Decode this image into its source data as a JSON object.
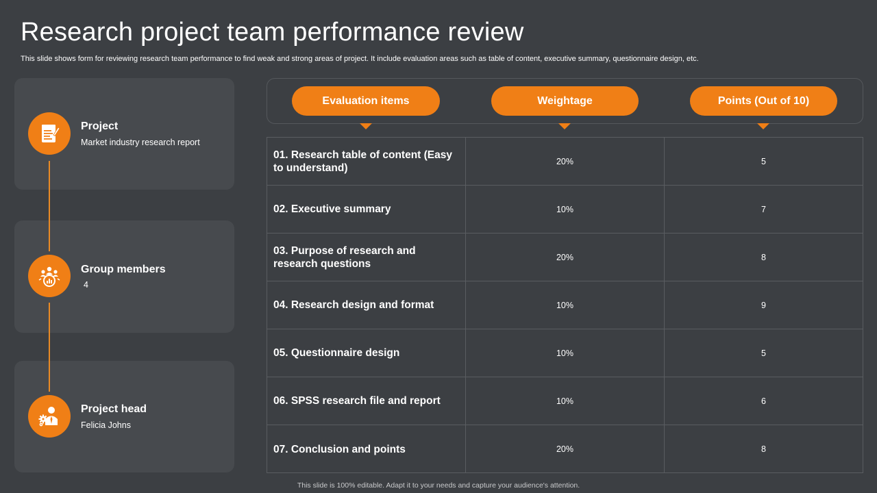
{
  "title": "Research project team performance review",
  "subtitle": "This slide shows form for reviewing research team performance to find weak and strong areas of project. It include evaluation areas such as table of content, executive summary, questionnaire design, etc.",
  "colors": {
    "accent": "#f07f16",
    "background": "#3c3f43",
    "card": "#474a4e"
  },
  "info_cards": [
    {
      "heading": "Project",
      "value": "Market industry research report",
      "icon": "report-document-icon"
    },
    {
      "heading": "Group members",
      "value": "4",
      "icon": "team-group-icon"
    },
    {
      "heading": "Project head",
      "value": "Felicia Johns",
      "icon": "manager-gear-icon"
    }
  ],
  "table": {
    "headers": [
      "Evaluation items",
      "Weightage",
      "Points (Out of 10)"
    ],
    "rows": [
      {
        "item": "01. Research table of content (Easy to understand)",
        "weightage": "20%",
        "points": "5"
      },
      {
        "item": "02. Executive summary",
        "weightage": "10%",
        "points": "7"
      },
      {
        "item": "03. Purpose of research and research questions",
        "weightage": "20%",
        "points": "8"
      },
      {
        "item": "04. Research design and format",
        "weightage": "10%",
        "points": "9"
      },
      {
        "item": "05. Questionnaire design",
        "weightage": "10%",
        "points": "5"
      },
      {
        "item": "06. SPSS research file and report",
        "weightage": "10%",
        "points": "6"
      },
      {
        "item": "07. Conclusion and points",
        "weightage": "20%",
        "points": "8"
      }
    ]
  },
  "footer": "This slide is 100% editable. Adapt it to your needs and capture your audience's attention."
}
